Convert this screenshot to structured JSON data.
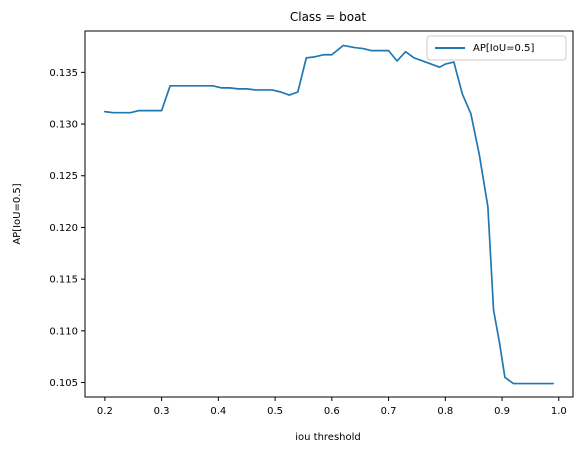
{
  "chart_data": {
    "type": "line",
    "title": "Class = boat",
    "xlabel": "iou threshold",
    "ylabel": "AP[IoU=0.5]",
    "xlim": [
      0.165,
      1.025
    ],
    "ylim": [
      0.1036,
      0.139
    ],
    "xticks": [
      0.2,
      0.3,
      0.4,
      0.5,
      0.6,
      0.7,
      0.8,
      0.9,
      1.0
    ],
    "xtick_labels": [
      "0.2",
      "0.3",
      "0.4",
      "0.5",
      "0.6",
      "0.7",
      "0.8",
      "0.9",
      "1.0"
    ],
    "yticks": [
      0.105,
      0.11,
      0.115,
      0.12,
      0.125,
      0.13,
      0.135
    ],
    "ytick_labels": [
      "0.105",
      "0.110",
      "0.115",
      "0.120",
      "0.125",
      "0.130",
      "0.135"
    ],
    "grid": false,
    "legend_position": "top-right",
    "series": [
      {
        "name": "AP[IoU=0.5]",
        "color": "#1f77b4",
        "x": [
          0.2,
          0.215,
          0.23,
          0.245,
          0.26,
          0.275,
          0.29,
          0.3,
          0.315,
          0.33,
          0.345,
          0.36,
          0.375,
          0.39,
          0.405,
          0.42,
          0.435,
          0.45,
          0.465,
          0.48,
          0.495,
          0.51,
          0.525,
          0.54,
          0.555,
          0.57,
          0.585,
          0.6,
          0.62,
          0.64,
          0.655,
          0.67,
          0.685,
          0.7,
          0.715,
          0.73,
          0.745,
          0.76,
          0.775,
          0.79,
          0.8,
          0.815,
          0.83,
          0.845,
          0.86,
          0.875,
          0.885,
          0.895,
          0.905,
          0.92,
          0.94,
          0.96,
          0.975,
          0.99
        ],
        "values": [
          0.1312,
          0.1311,
          0.1311,
          0.1311,
          0.1313,
          0.1313,
          0.1313,
          0.1313,
          0.1337,
          0.1337,
          0.1337,
          0.1337,
          0.1337,
          0.1337,
          0.1335,
          0.1335,
          0.1334,
          0.1334,
          0.1333,
          0.1333,
          0.1333,
          0.1331,
          0.1328,
          0.1331,
          0.1364,
          0.1365,
          0.1367,
          0.1367,
          0.1376,
          0.1374,
          0.1373,
          0.1371,
          0.1371,
          0.1371,
          0.1361,
          0.137,
          0.1364,
          0.1361,
          0.1358,
          0.1355,
          0.1358,
          0.136,
          0.1329,
          0.131,
          0.127,
          0.122,
          0.112,
          0.109,
          0.1055,
          0.1049,
          0.1049,
          0.1049,
          0.1049,
          0.1049
        ]
      }
    ]
  }
}
